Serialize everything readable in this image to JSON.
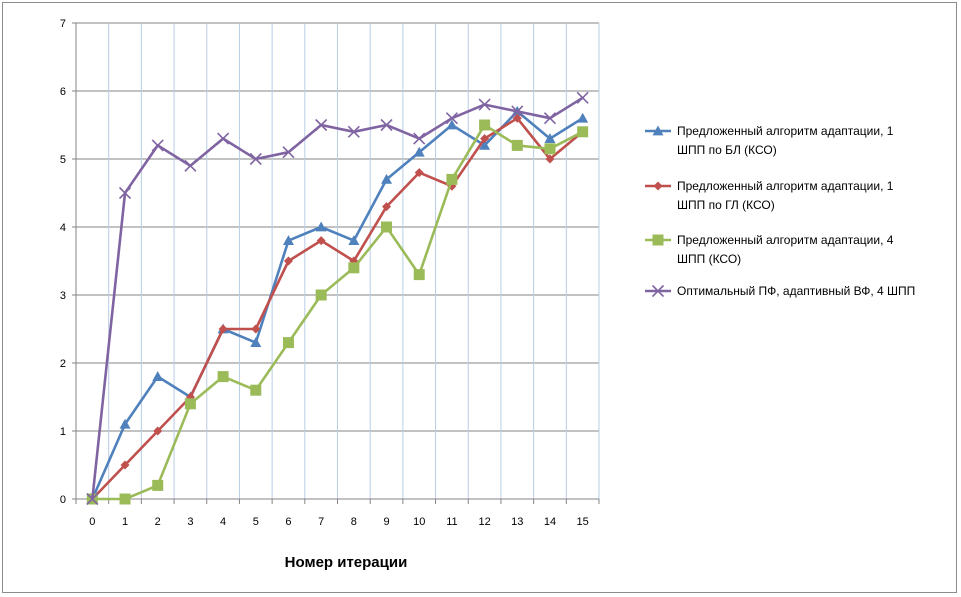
{
  "chart_data": {
    "type": "line",
    "title": "",
    "xlabel": "Номер итерации",
    "ylabel": "",
    "x": [
      0,
      1,
      2,
      3,
      4,
      5,
      6,
      7,
      8,
      9,
      10,
      11,
      12,
      13,
      14,
      15
    ],
    "x_tick_labels": [
      "0",
      "1",
      "2",
      "3",
      "4",
      "5",
      "6",
      "7",
      "8",
      "9",
      "10",
      "11",
      "12",
      "13",
      "14",
      "15"
    ],
    "y_tick_labels": [
      "0",
      "1",
      "2",
      "3",
      "4",
      "5",
      "6",
      "7"
    ],
    "ylim": [
      0,
      7
    ],
    "xlim": [
      0,
      15
    ],
    "grid": {
      "horizontal": true,
      "vertical": true
    },
    "legend_position": "right",
    "series": [
      {
        "name": "Предложенный алгоритм адаптации, 1 ШПП по БЛ (КСО)",
        "legend_lines": [
          "Предложенный алгоритм адаптации, 1",
          "ШПП по БЛ (КСО)"
        ],
        "color": "#4F81BD",
        "marker": "triangle",
        "values": [
          0,
          1.1,
          1.8,
          1.5,
          2.5,
          2.3,
          3.8,
          4.0,
          3.8,
          4.7,
          5.1,
          5.5,
          5.2,
          5.7,
          5.3,
          5.6
        ]
      },
      {
        "name": "Предложенный алгоритм адаптации, 1 ШПП по ГЛ (КСО)",
        "legend_lines": [
          "Предложенный алгоритм адаптации, 1",
          "ШПП по ГЛ (КСО)"
        ],
        "color": "#C0504D",
        "marker": "diamond",
        "values": [
          0,
          0.5,
          1.0,
          1.5,
          2.5,
          2.5,
          3.5,
          3.8,
          3.5,
          4.3,
          4.8,
          4.6,
          5.3,
          5.6,
          5.0,
          5.4
        ]
      },
      {
        "name": "Предложенный алгоритм адаптации, 4 ШПП (КСО)",
        "legend_lines": [
          "Предложенный алгоритм адаптации, 4",
          "ШПП (КСО)"
        ],
        "color": "#9BBB59",
        "marker": "square",
        "values": [
          0,
          0,
          0.2,
          1.4,
          1.8,
          1.6,
          2.3,
          3.0,
          3.4,
          4.0,
          3.3,
          4.7,
          5.5,
          5.2,
          5.15,
          5.4
        ]
      },
      {
        "name": "Оптимальный ПФ, адаптивный ВФ, 4 ШПП",
        "legend_lines": [
          "Оптимальный ПФ, адаптивный ВФ, 4 ШПП"
        ],
        "color": "#8064A2",
        "marker": "x",
        "values": [
          0,
          4.5,
          5.2,
          4.9,
          5.3,
          5.0,
          5.1,
          5.5,
          5.4,
          5.5,
          5.3,
          5.6,
          5.8,
          5.7,
          5.6,
          5.9
        ]
      }
    ]
  }
}
